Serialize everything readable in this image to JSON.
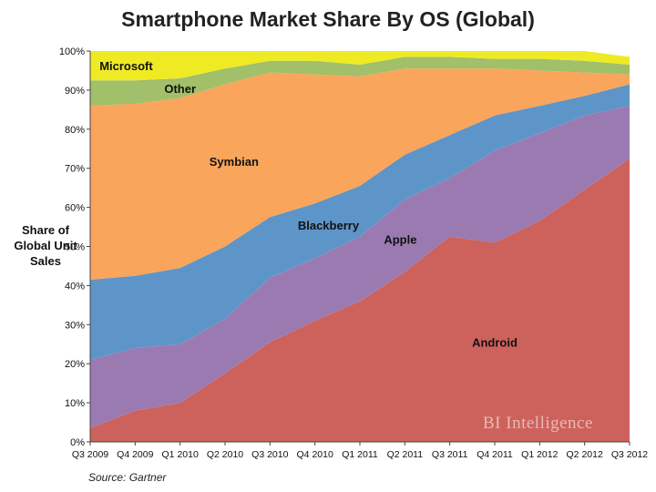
{
  "chart_data": {
    "type": "area",
    "stacked": true,
    "title": "Smartphone Market Share By OS (Global)",
    "ylabel": "Share of Global Unit Sales",
    "xlabel": "",
    "source": "Source: Gartner",
    "watermark": "BI Intelligence",
    "ylim": [
      0,
      100
    ],
    "y_ticks": [
      "0%",
      "10%",
      "20%",
      "30%",
      "40%",
      "50%",
      "60%",
      "70%",
      "80%",
      "90%",
      "100%"
    ],
    "categories": [
      "Q3 2009",
      "Q4 2009",
      "Q1 2010",
      "Q2 2010",
      "Q3 2010",
      "Q4 2010",
      "Q1 2011",
      "Q2 2011",
      "Q3 2011",
      "Q4 2011",
      "Q1 2012",
      "Q2 2012",
      "Q3 2012"
    ],
    "series": [
      {
        "name": "Android",
        "label": "Android",
        "color": "#cd625c",
        "values": [
          3.5,
          8,
          10,
          17.5,
          25.5,
          31,
          36,
          43.5,
          52.5,
          51,
          56.5,
          64.5,
          72.5
        ]
      },
      {
        "name": "Apple",
        "label": "Apple",
        "color": "#9b7ab2",
        "values": [
          17.5,
          16,
          15,
          14,
          16.5,
          16,
          16.5,
          18.5,
          15,
          23.5,
          22.5,
          19,
          13.5
        ]
      },
      {
        "name": "Blackberry",
        "label": "Blackberry",
        "color": "#5e95c8",
        "values": [
          20.5,
          18.5,
          19.5,
          18.5,
          15.5,
          14,
          13,
          11.5,
          11,
          9,
          7,
          5,
          5.5
        ]
      },
      {
        "name": "Symbian",
        "label": "Symbian",
        "color": "#f9a55c",
        "values": [
          44.5,
          44,
          43.5,
          41.5,
          37,
          33,
          28,
          22,
          17,
          12,
          9,
          6,
          2.5
        ]
      },
      {
        "name": "Other",
        "label": "Other",
        "color": "#a2bf6a",
        "values": [
          6.5,
          6,
          5,
          4,
          3,
          3.5,
          3,
          3,
          3,
          2.5,
          3,
          3,
          2.5
        ]
      },
      {
        "name": "Microsoft",
        "label": "Microsoft",
        "color": "#eeeb24",
        "values": [
          7.5,
          7.5,
          7,
          4.5,
          2.5,
          2.5,
          3.5,
          1.5,
          1.5,
          2,
          2,
          2.5,
          2
        ]
      }
    ]
  }
}
